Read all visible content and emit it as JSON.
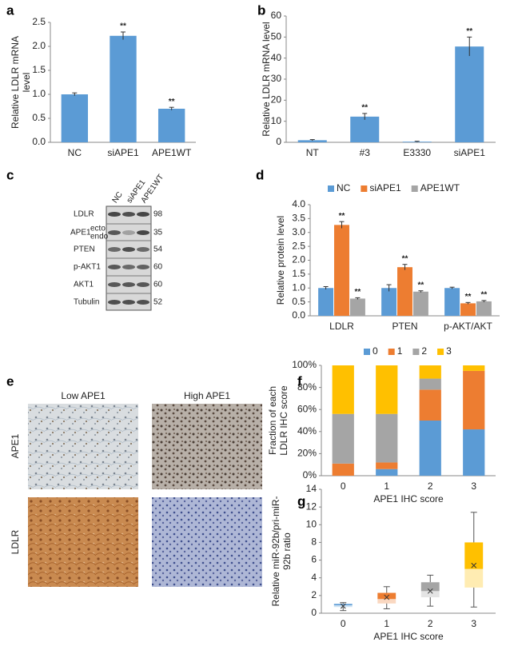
{
  "chart_data": [
    {
      "type": "bar",
      "panel": "a",
      "ylabel": [
        "Relative LDLR mRNA",
        "level"
      ],
      "categories": [
        "NC",
        "siAPE1",
        "APE1WT"
      ],
      "series": [
        {
          "color": "#5b9bd5",
          "values": [
            1.0,
            2.22,
            0.7
          ],
          "errors": [
            0.03,
            0.08,
            0.03
          ],
          "annotations": [
            null,
            "**",
            "**"
          ]
        }
      ],
      "ylim": [
        0,
        2.5
      ],
      "yticks": [
        {
          "value": 0,
          "label": "0.0"
        },
        {
          "value": 0.5,
          "label": "0.5"
        },
        {
          "value": 1,
          "label": "1.0"
        },
        {
          "value": 1.5,
          "label": "1.5"
        },
        {
          "value": 2,
          "label": "2.0"
        },
        {
          "value": 2.5,
          "label": "2.5"
        }
      ]
    },
    {
      "type": "bar",
      "panel": "b",
      "ylabel": [
        "Relative LDLR mRNA level"
      ],
      "categories": [
        "NT",
        "#3",
        "E3330",
        "siAPE1"
      ],
      "series": [
        {
          "color": "#5b9bd5",
          "values": [
            1.0,
            12.2,
            0.3,
            45.5
          ],
          "errors": [
            0.3,
            1.5,
            0.2,
            4.5
          ],
          "annotations": [
            null,
            "**",
            null,
            "**"
          ]
        }
      ],
      "ylim": [
        0,
        60
      ],
      "yticks": [
        0,
        10,
        20,
        30,
        40,
        50,
        60
      ]
    },
    {
      "type": "bar",
      "panel": "d",
      "ylabel": [
        "Relative protein level"
      ],
      "categories": [
        "LDLR",
        "PTEN",
        "p-AKT/AKT"
      ],
      "series": [
        {
          "name": "NC",
          "color": "#5b9bd5",
          "values": [
            1.0,
            1.0,
            1.0
          ],
          "errors": [
            0.05,
            0.12,
            0.03
          ],
          "annotations": [
            null,
            null,
            null
          ]
        },
        {
          "name": "siAPE1",
          "color": "#ed7d31",
          "values": [
            3.27,
            1.75,
            0.45
          ],
          "errors": [
            0.12,
            0.1,
            0.03
          ],
          "annotations": [
            "**",
            "**",
            "**"
          ]
        },
        {
          "name": "APE1WT",
          "color": "#a5a5a5",
          "values": [
            0.62,
            0.87,
            0.52
          ],
          "errors": [
            0.03,
            0.03,
            0.03
          ],
          "annotations": [
            "**",
            "**",
            "**"
          ]
        }
      ],
      "ylim": [
        0,
        4
      ],
      "yticks": [
        {
          "value": 0,
          "label": "0.0"
        },
        {
          "value": 0.5,
          "label": "0.5"
        },
        {
          "value": 1,
          "label": "1.0"
        },
        {
          "value": 1.5,
          "label": "1.5"
        },
        {
          "value": 2,
          "label": "2.0"
        },
        {
          "value": 2.5,
          "label": "2.5"
        },
        {
          "value": 3,
          "label": "3.0"
        },
        {
          "value": 3.5,
          "label": "3.5"
        },
        {
          "value": 4,
          "label": "4.0"
        }
      ]
    },
    {
      "type": "stacked_bar",
      "panel": "f",
      "ylabel": [
        "Fraction of each",
        "LDLR IHC score"
      ],
      "xlabel": "APE1 IHC score",
      "categories": [
        "0",
        "1",
        "2",
        "3"
      ],
      "series": [
        {
          "name": "0",
          "color": "#5b9bd5",
          "values": [
            0,
            6,
            50,
            42
          ]
        },
        {
          "name": "1",
          "color": "#ed7d31",
          "values": [
            11,
            6,
            28,
            53
          ]
        },
        {
          "name": "2",
          "color": "#a5a5a5",
          "values": [
            45,
            44,
            10,
            0
          ]
        },
        {
          "name": "3",
          "color": "#ffc000",
          "values": [
            44,
            44,
            12,
            5
          ]
        }
      ],
      "ylim": [
        0,
        100
      ],
      "yticks": [
        {
          "value": 0,
          "label": "0%"
        },
        {
          "value": 20,
          "label": "20%"
        },
        {
          "value": 40,
          "label": "40%"
        },
        {
          "value": 60,
          "label": "60%"
        },
        {
          "value": 80,
          "label": "80%"
        },
        {
          "value": 100,
          "label": "100%"
        }
      ]
    },
    {
      "type": "box",
      "panel": "g",
      "ylabel": [
        "Relative miR-92b/pri-miR-",
        "92b ratio"
      ],
      "xlabel": "APE1 IHC score",
      "categories": [
        "0",
        "1",
        "2",
        "3"
      ],
      "colors": [
        "#5b9bd5",
        "#ed7d31",
        "#a5a5a5",
        "#ffc000"
      ],
      "min": [
        0.3,
        0.5,
        0.8,
        0.7
      ],
      "q1": [
        0.7,
        1.1,
        1.8,
        2.9
      ],
      "median": [
        0.9,
        1.6,
        2.5,
        5.0
      ],
      "q3": [
        1.05,
        2.3,
        3.5,
        8.0
      ],
      "max": [
        1.2,
        3.0,
        4.3,
        11.4
      ],
      "mean": [
        0.8,
        1.8,
        2.5,
        5.4
      ],
      "ylim": [
        0,
        14
      ],
      "yticks": [
        0,
        2,
        4,
        6,
        8,
        10,
        12,
        14
      ]
    }
  ],
  "blot": {
    "panel": "c",
    "columns": [
      "NC",
      "siAPE1",
      "APE1WT"
    ],
    "rows": [
      {
        "label": "LDLR",
        "mw": 98
      },
      {
        "label": "APE1",
        "sublabels": [
          "ecto",
          "endo"
        ],
        "mw": 35
      },
      {
        "label": "PTEN",
        "mw": 54
      },
      {
        "label": "p-AKT1",
        "mw": 60
      },
      {
        "label": "AKT1",
        "mw": 60
      },
      {
        "label": "Tubulin",
        "mw": 52
      }
    ]
  },
  "ihc": {
    "panel": "e",
    "columns": [
      "Low APE1",
      "High APE1"
    ],
    "rows": [
      "APE1",
      "LDLR"
    ]
  }
}
